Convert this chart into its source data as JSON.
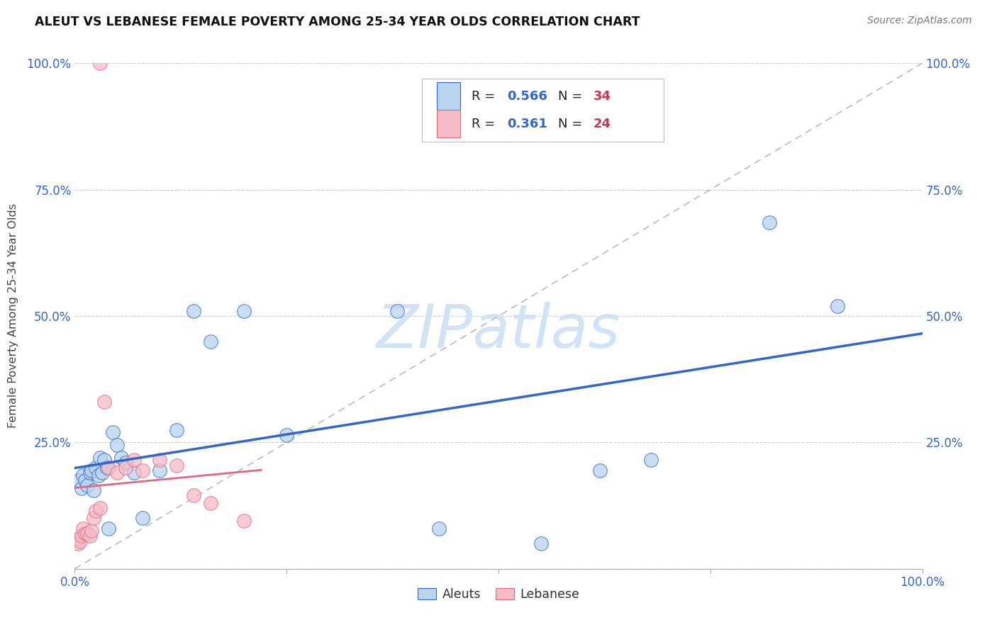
{
  "title": "ALEUT VS LEBANESE FEMALE POVERTY AMONG 25-34 YEAR OLDS CORRELATION CHART",
  "source": "Source: ZipAtlas.com",
  "ylabel": "Female Poverty Among 25-34 Year Olds",
  "xlim": [
    0,
    1
  ],
  "ylim": [
    0,
    1
  ],
  "aleuts_x": [
    0.005,
    0.008,
    0.01,
    0.012,
    0.015,
    0.018,
    0.02,
    0.022,
    0.025,
    0.028,
    0.03,
    0.032,
    0.035,
    0.038,
    0.04,
    0.045,
    0.05,
    0.055,
    0.06,
    0.07,
    0.08,
    0.1,
    0.12,
    0.14,
    0.16,
    0.2,
    0.25,
    0.38,
    0.43,
    0.55,
    0.62,
    0.68,
    0.82,
    0.9
  ],
  "aleuts_y": [
    0.175,
    0.16,
    0.185,
    0.175,
    0.165,
    0.19,
    0.195,
    0.155,
    0.2,
    0.185,
    0.22,
    0.19,
    0.215,
    0.2,
    0.08,
    0.27,
    0.245,
    0.22,
    0.21,
    0.19,
    0.1,
    0.195,
    0.275,
    0.51,
    0.45,
    0.51,
    0.265,
    0.51,
    0.08,
    0.05,
    0.195,
    0.215,
    0.685,
    0.52
  ],
  "lebanese_x": [
    0.004,
    0.005,
    0.006,
    0.008,
    0.01,
    0.012,
    0.015,
    0.018,
    0.02,
    0.022,
    0.025,
    0.03,
    0.035,
    0.04,
    0.05,
    0.06,
    0.07,
    0.08,
    0.1,
    0.12,
    0.14,
    0.16,
    0.2,
    0.03
  ],
  "lebanese_y": [
    0.05,
    0.06,
    0.055,
    0.065,
    0.08,
    0.07,
    0.07,
    0.065,
    0.075,
    0.1,
    0.115,
    0.12,
    0.33,
    0.2,
    0.19,
    0.2,
    0.215,
    0.195,
    0.215,
    0.205,
    0.145,
    0.13,
    0.095,
    1.0
  ],
  "aleuts_R": 0.566,
  "aleuts_N": 34,
  "lebanese_R": 0.361,
  "lebanese_N": 24,
  "aleuts_color": "#b8d4ee",
  "lebanese_color": "#f5bcc8",
  "aleuts_line_color": "#3366cc",
  "lebanese_line_color": "#e06880",
  "trendline_dash_color": "#bbbbbb",
  "watermark_color": "#d0e4f5",
  "background_color": "#ffffff",
  "grid_color": "#cccccc",
  "tick_color": "#3366cc",
  "label_color": "#444444",
  "R_text_color": "#3366cc",
  "N_text_color": "#cc3355"
}
